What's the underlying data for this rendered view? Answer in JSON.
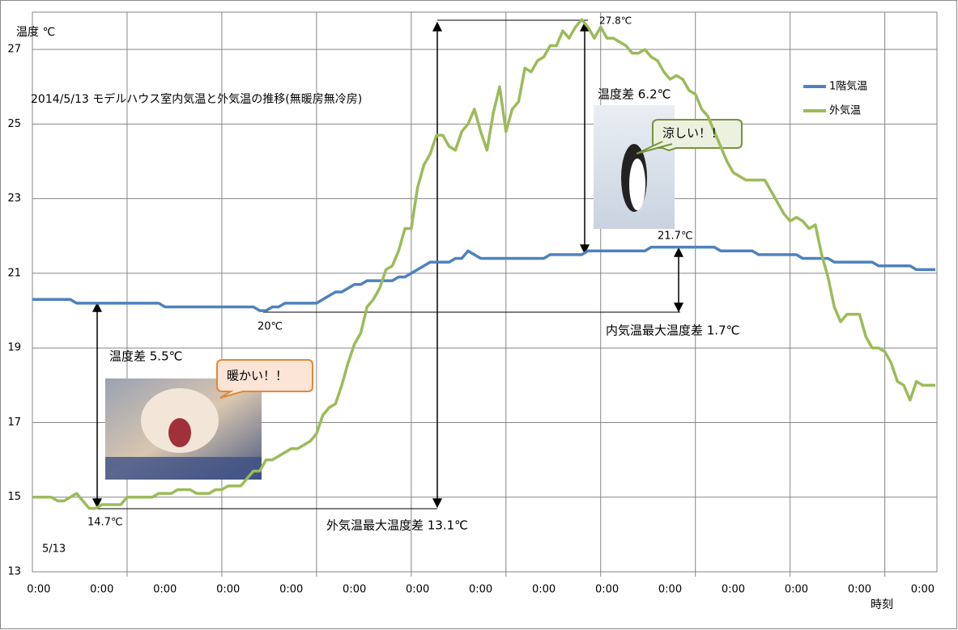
{
  "chart_data": {
    "type": "line",
    "title": "2014/5/13  モデルハウス室内気温と外気温の推移(無暖房無冷房)",
    "y_label": "温度  ℃",
    "x_label": "時刻",
    "categories": [
      null,
      "0:00",
      null,
      null,
      null,
      null,
      null,
      null,
      null,
      null,
      null,
      "0:00",
      null,
      null,
      null,
      null,
      null,
      null,
      null,
      null,
      null,
      "0:00",
      null,
      null,
      null,
      null,
      null,
      null,
      null,
      null,
      null,
      "0:00",
      null,
      null,
      null,
      null,
      null,
      null,
      null,
      null,
      null,
      "0:00",
      null,
      null,
      null,
      null,
      null,
      null,
      null,
      null,
      null,
      "0:00",
      null,
      null,
      null,
      null,
      null,
      null,
      null,
      null,
      null,
      "0:00",
      null,
      null,
      null,
      null,
      null,
      null,
      null,
      null,
      null,
      "0:00",
      null,
      null,
      null,
      null,
      null,
      null,
      null,
      null,
      null,
      "0:00",
      null,
      null,
      null,
      null,
      null,
      null,
      null,
      null,
      null,
      "0:00",
      null,
      null,
      null,
      null,
      null,
      null,
      null,
      null,
      null,
      "0:00",
      null,
      null,
      null,
      null,
      null,
      null,
      null,
      null,
      null,
      "0:00",
      null,
      null,
      null,
      null,
      null,
      null,
      null,
      null,
      null,
      "0:00",
      null,
      null,
      null,
      null,
      null,
      null,
      null,
      null,
      null,
      "0:00",
      null,
      null,
      null,
      null,
      null,
      null,
      null,
      null,
      null,
      "0:00",
      null,
      null
    ],
    "series": [
      {
        "name": "1階気温",
        "color": "#4f81bd",
        "values": [
          20.3,
          20.3,
          20.3,
          20.3,
          20.3,
          20.3,
          20.3,
          20.2,
          20.2,
          20.2,
          20.2,
          20.2,
          20.2,
          20.2,
          20.2,
          20.2,
          20.2,
          20.2,
          20.2,
          20.2,
          20.2,
          20.1,
          20.1,
          20.1,
          20.1,
          20.1,
          20.1,
          20.1,
          20.1,
          20.1,
          20.1,
          20.1,
          20.1,
          20.1,
          20.1,
          20.1,
          20.0,
          20.0,
          20.1,
          20.1,
          20.2,
          20.2,
          20.2,
          20.2,
          20.2,
          20.2,
          20.3,
          20.4,
          20.5,
          20.5,
          20.6,
          20.7,
          20.7,
          20.8,
          20.8,
          20.8,
          20.8,
          20.8,
          20.9,
          20.9,
          21.0,
          21.1,
          21.2,
          21.3,
          21.3,
          21.3,
          21.3,
          21.4,
          21.4,
          21.6,
          21.5,
          21.4,
          21.4,
          21.4,
          21.4,
          21.4,
          21.4,
          21.4,
          21.4,
          21.4,
          21.4,
          21.4,
          21.5,
          21.5,
          21.5,
          21.5,
          21.5,
          21.5,
          21.6,
          21.6,
          21.6,
          21.6,
          21.6,
          21.6,
          21.6,
          21.6,
          21.6,
          21.6,
          21.7,
          21.7,
          21.7,
          21.7,
          21.7,
          21.7,
          21.7,
          21.7,
          21.7,
          21.7,
          21.7,
          21.6,
          21.6,
          21.6,
          21.6,
          21.6,
          21.6,
          21.5,
          21.5,
          21.5,
          21.5,
          21.5,
          21.5,
          21.5,
          21.4,
          21.4,
          21.4,
          21.4,
          21.4,
          21.3,
          21.3,
          21.3,
          21.3,
          21.3,
          21.3,
          21.3,
          21.2,
          21.2,
          21.2,
          21.2,
          21.2,
          21.2,
          21.1,
          21.1,
          21.1,
          21.1
        ]
      },
      {
        "name": "外気温",
        "color": "#9bbb59",
        "values": [
          15.0,
          15.0,
          15.0,
          15.0,
          14.9,
          14.9,
          15.0,
          15.1,
          14.9,
          14.7,
          14.7,
          14.8,
          14.8,
          14.8,
          14.8,
          15.0,
          15.0,
          15.0,
          15.0,
          15.0,
          15.1,
          15.1,
          15.1,
          15.2,
          15.2,
          15.2,
          15.1,
          15.1,
          15.1,
          15.2,
          15.2,
          15.3,
          15.3,
          15.3,
          15.5,
          15.7,
          15.7,
          16.0,
          16.0,
          16.1,
          16.2,
          16.3,
          16.3,
          16.4,
          16.5,
          16.7,
          17.2,
          17.4,
          17.5,
          18.0,
          18.6,
          19.1,
          19.4,
          20.1,
          20.3,
          20.6,
          21.1,
          21.2,
          21.6,
          22.2,
          22.2,
          23.3,
          23.9,
          24.2,
          24.7,
          24.7,
          24.4,
          24.3,
          24.8,
          25.0,
          25.4,
          24.8,
          24.3,
          25.3,
          26.0,
          24.8,
          25.4,
          25.6,
          26.5,
          26.4,
          26.7,
          26.8,
          27.1,
          27.1,
          27.5,
          27.3,
          27.6,
          27.8,
          27.6,
          27.3,
          27.6,
          27.3,
          27.3,
          27.2,
          27.1,
          26.9,
          26.9,
          27.0,
          26.8,
          26.7,
          26.4,
          26.2,
          26.3,
          26.2,
          25.9,
          25.8,
          25.4,
          25.2,
          24.8,
          24.4,
          24.0,
          23.7,
          23.6,
          23.5,
          23.5,
          23.5,
          23.5,
          23.2,
          22.9,
          22.6,
          22.4,
          22.5,
          22.4,
          22.2,
          22.3,
          21.5,
          20.9,
          20.1,
          19.7,
          19.9,
          19.9,
          19.9,
          19.3,
          19.0,
          19.0,
          18.9,
          18.6,
          18.1,
          18.0,
          17.6,
          18.1,
          18.0,
          18.0,
          18.0
        ]
      }
    ],
    "ylim": [
      13,
      28
    ],
    "yticks": [
      13,
      15,
      17,
      19,
      21,
      23,
      25,
      27
    ],
    "grid": true,
    "annotations": [
      "温度差  6.2℃",
      "涼しい！！",
      "27.8℃",
      "21.7℃",
      "内気温最大温度差  1.7℃",
      "20℃",
      "温度差  5.5℃",
      "暖かい！！",
      "14.7℃",
      "外気温最大温度差  13.1℃",
      "5/13"
    ]
  }
}
